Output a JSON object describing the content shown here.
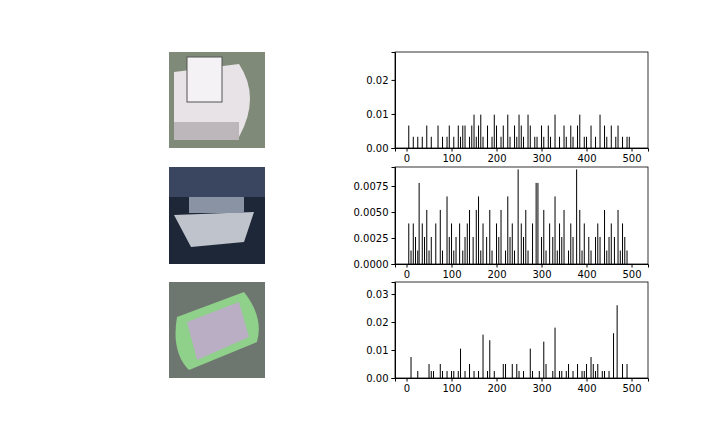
{
  "chart_data": [
    {
      "type": "bar",
      "color": "#000000",
      "x": [
        5,
        15,
        25,
        35,
        45,
        55,
        70,
        80,
        90,
        95,
        105,
        115,
        120,
        125,
        130,
        140,
        145,
        150,
        155,
        160,
        165,
        170,
        180,
        190,
        195,
        200,
        210,
        215,
        225,
        230,
        240,
        245,
        250,
        255,
        260,
        270,
        275,
        285,
        290,
        300,
        305,
        315,
        320,
        330,
        340,
        350,
        355,
        365,
        370,
        380,
        385,
        395,
        400,
        410,
        420,
        430,
        440,
        445,
        455,
        465,
        470,
        480,
        490,
        495
      ],
      "values": [
        0.0066,
        0.0033,
        0.0033,
        0.0033,
        0.0066,
        0.0033,
        0.0066,
        0.0033,
        0.0033,
        0.0066,
        0.0033,
        0.0066,
        0.0033,
        0.0066,
        0.0066,
        0.0033,
        0.0066,
        0.0098,
        0.0033,
        0.0066,
        0.0098,
        0.0033,
        0.0066,
        0.0033,
        0.0098,
        0.0066,
        0.0033,
        0.0066,
        0.0098,
        0.0033,
        0.0066,
        0.0033,
        0.0098,
        0.0066,
        0.0033,
        0.0098,
        0.0066,
        0.0033,
        0.0033,
        0.0066,
        0.0033,
        0.0066,
        0.0033,
        0.0098,
        0.0033,
        0.0066,
        0.0033,
        0.0066,
        0.0033,
        0.0066,
        0.0098,
        0.0033,
        0.0033,
        0.0066,
        0.0033,
        0.0098,
        0.0066,
        0.0033,
        0.0066,
        0.0033,
        0.0066,
        0.0033,
        0.0033,
        0.0033
      ],
      "xlim": [
        -25.6,
        536.6
      ],
      "xticks": [
        0,
        100,
        200,
        300,
        400,
        500
      ],
      "ylim": [
        0,
        0.0282
      ],
      "yticks": [
        {
          "value": 0,
          "label": "0.00"
        },
        {
          "value": 0.01,
          "label": "0.01"
        },
        {
          "value": 0.02,
          "label": "0.02"
        }
      ]
    },
    {
      "type": "bar",
      "color": "#000000",
      "x": [
        5,
        10,
        15,
        20,
        25,
        28,
        35,
        40,
        45,
        50,
        55,
        65,
        75,
        80,
        90,
        95,
        100,
        105,
        110,
        118,
        125,
        130,
        135,
        140,
        148,
        155,
        160,
        165,
        170,
        178,
        185,
        190,
        200,
        205,
        210,
        220,
        225,
        230,
        235,
        240,
        248,
        255,
        260,
        265,
        270,
        280,
        288,
        292,
        300,
        305,
        310,
        318,
        325,
        330,
        335,
        340,
        345,
        350,
        360,
        365,
        370,
        378,
        385,
        390,
        395,
        405,
        410,
        420,
        425,
        430,
        440,
        445,
        450,
        455,
        462,
        470,
        475,
        480,
        485,
        490
      ],
      "values": [
        0.0039,
        0.0013,
        0.0039,
        0.0026,
        0.0013,
        0.0078,
        0.0039,
        0.0026,
        0.0052,
        0.0013,
        0.0026,
        0.0039,
        0.0052,
        0.0013,
        0.0065,
        0.0026,
        0.0039,
        0.0013,
        0.0026,
        0.0039,
        0.0013,
        0.0026,
        0.0039,
        0.0052,
        0.0026,
        0.0052,
        0.0065,
        0.0013,
        0.0039,
        0.0026,
        0.0052,
        0.0013,
        0.0039,
        0.0026,
        0.0052,
        0.0013,
        0.0065,
        0.0026,
        0.0039,
        0.0013,
        0.0091,
        0.0039,
        0.0026,
        0.0052,
        0.0013,
        0.0039,
        0.0078,
        0.0078,
        0.0026,
        0.0052,
        0.0013,
        0.0039,
        0.0026,
        0.0065,
        0.0013,
        0.0039,
        0.0026,
        0.0052,
        0.0013,
        0.0039,
        0.0026,
        0.0091,
        0.0052,
        0.0013,
        0.0039,
        0.0026,
        0.0013,
        0.0026,
        0.0039,
        0.0026,
        0.0052,
        0.0013,
        0.0026,
        0.0039,
        0.0026,
        0.0052,
        0.0013,
        0.0039,
        0.0026,
        0.0013
      ],
      "xlim": [
        -25.6,
        536.6
      ],
      "xticks": [
        0,
        100,
        200,
        300,
        400,
        500
      ],
      "ylim": [
        0,
        0.00933
      ],
      "yticks": [
        {
          "value": 0,
          "label": "0.0000"
        },
        {
          "value": 0.0025,
          "label": "0.0025"
        },
        {
          "value": 0.005,
          "label": "0.0050"
        },
        {
          "value": 0.0075,
          "label": "0.0075"
        }
      ]
    },
    {
      "type": "bar",
      "color": "#000000",
      "x": [
        10,
        25,
        50,
        55,
        60,
        75,
        80,
        90,
        100,
        105,
        115,
        120,
        130,
        140,
        150,
        160,
        170,
        180,
        185,
        195,
        215,
        220,
        235,
        245,
        250,
        260,
        275,
        280,
        295,
        305,
        310,
        325,
        330,
        340,
        345,
        355,
        360,
        370,
        380,
        390,
        395,
        400,
        410,
        415,
        420,
        425,
        435,
        440,
        450,
        460,
        468,
        480,
        490
      ],
      "values": [
        0.0075,
        0.0025,
        0.005,
        0.0025,
        0.0025,
        0.005,
        0.0025,
        0.0025,
        0.0025,
        0.0025,
        0.0025,
        0.0105,
        0.0025,
        0.005,
        0.0025,
        0.0025,
        0.0155,
        0.0025,
        0.0135,
        0.0025,
        0.005,
        0.005,
        0.005,
        0.005,
        0.0025,
        0.0025,
        0.0105,
        0.0025,
        0.0025,
        0.013,
        0.005,
        0.0025,
        0.018,
        0.0025,
        0.0025,
        0.0025,
        0.005,
        0.0025,
        0.005,
        0.0025,
        0.0025,
        0.005,
        0.0075,
        0.005,
        0.0025,
        0.005,
        0.0025,
        0.0025,
        0.0025,
        0.016,
        0.026,
        0.005,
        0.005
      ],
      "xlim": [
        -25.6,
        536.6
      ],
      "xticks": [
        0,
        100,
        200,
        300,
        400,
        500
      ],
      "ylim": [
        0,
        0.0343
      ],
      "yticks": [
        {
          "value": 0,
          "label": "0.00"
        },
        {
          "value": 0.01,
          "label": "0.01"
        },
        {
          "value": 0.02,
          "label": "0.02"
        },
        {
          "value": 0.03,
          "label": "0.03"
        }
      ]
    }
  ]
}
